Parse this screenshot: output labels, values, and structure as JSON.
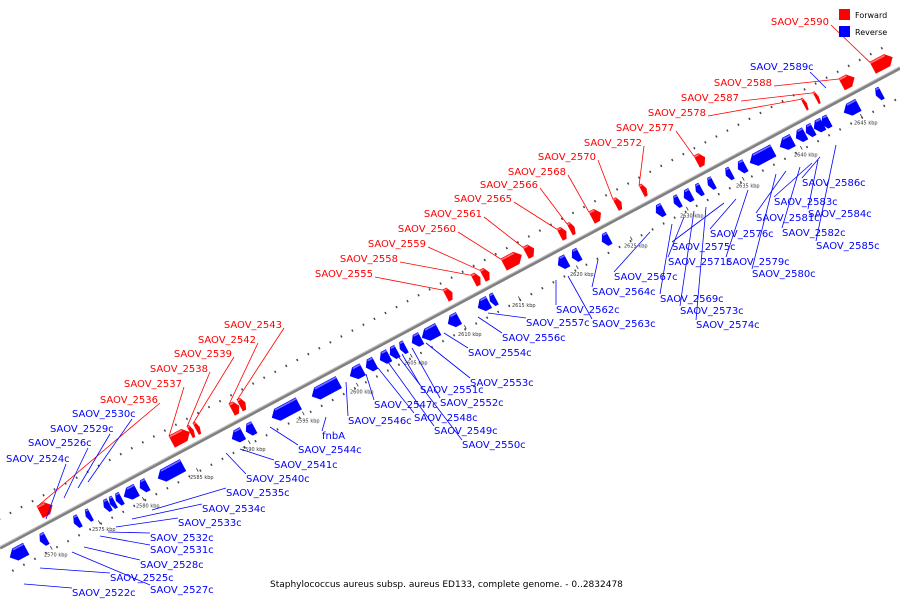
{
  "caption": "Staphylococcus aureus subsp. aureus ED133, complete genome. - 0..2832478",
  "legend": {
    "forward": {
      "label": "Forward",
      "color": "#ff0000"
    },
    "reverse": {
      "label": "Reverse",
      "color": "#0000ff"
    }
  },
  "backbone_color": "#808080",
  "scale_labels": [
    "2570 kbp",
    "2575 kbp",
    "2580 kbp",
    "2585 kbp",
    "2590 kbp",
    "2595 kbp",
    "2600 kbp",
    "2605 kbp",
    "2610 kbp",
    "2615 kbp",
    "2620 kbp",
    "2625 kbp",
    "2630 kbp",
    "2635 kbp",
    "2640 kbp",
    "2645 kbp"
  ],
  "forward_genes": [
    "SAOV_2536",
    "SAOV_2537",
    "SAOV_2538",
    "SAOV_2539",
    "SAOV_2542",
    "SAOV_2543",
    "SAOV_2555",
    "SAOV_2558",
    "SAOV_2559",
    "SAOV_2560",
    "SAOV_2561",
    "SAOV_2565",
    "SAOV_2566",
    "SAOV_2568",
    "SAOV_2570",
    "SAOV_2572",
    "SAOV_2577",
    "SAOV_2578",
    "SAOV_2587",
    "SAOV_2588",
    "SAOV_2590"
  ],
  "reverse_upper_genes": [
    "SAOV_2524c",
    "SAOV_2526c",
    "SAOV_2529c",
    "SAOV_2530c",
    "SAOV_2589c"
  ],
  "reverse_lower_genes": [
    "SAOV_2522c",
    "SAOV_2525c",
    "SAOV_2527c",
    "SAOV_2528c",
    "SAOV_2531c",
    "SAOV_2532c",
    "SAOV_2533c",
    "SAOV_2534c",
    "SAOV_2535c",
    "SAOV_2540c",
    "SAOV_2541c",
    "SAOV_2544c",
    "fnbA",
    "SAOV_2546c",
    "SAOV_2547c",
    "SAOV_2548c",
    "SAOV_2549c",
    "SAOV_2550c",
    "SAOV_2551c",
    "SAOV_2552c",
    "SAOV_2553c",
    "SAOV_2554c",
    "SAOV_2556c",
    "SAOV_2557c",
    "SAOV_2562c",
    "SAOV_2563c",
    "SAOV_2564c",
    "SAOV_2567c",
    "SAOV_2569c",
    "SAOV_2571c",
    "SAOV_2573c",
    "SAOV_2574c",
    "SAOV_2575c",
    "SAOV_2576c",
    "SAOV_2579c",
    "SAOV_2580c",
    "SAOV_2581c",
    "SAOV_2582c",
    "SAOV_2583c",
    "SAOV_2584c",
    "SAOV_2585c",
    "SAOV_2586c"
  ]
}
